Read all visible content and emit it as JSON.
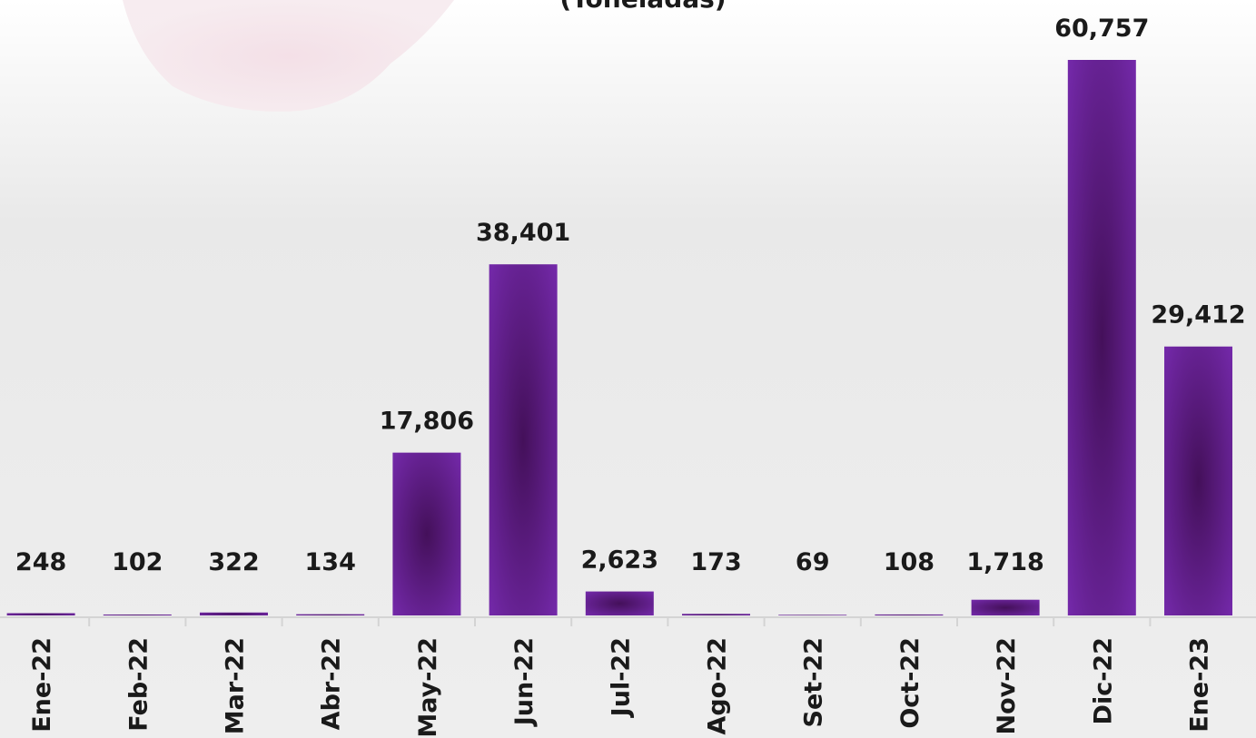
{
  "chart_data": {
    "type": "bar",
    "title": "(Toneladas)",
    "categories": [
      "Ene-22",
      "Feb-22",
      "Mar-22",
      "Abr-22",
      "May-22",
      "Jun-22",
      "Jul-22",
      "Ago-22",
      "Set-22",
      "Oct-22",
      "Nov-22",
      "Dic-22",
      "Ene-23"
    ],
    "values": [
      248,
      102,
      322,
      134,
      17806,
      38401,
      2623,
      173,
      69,
      108,
      1718,
      60757,
      29412
    ],
    "value_labels": [
      "248",
      "102",
      "322",
      "134",
      "17,806",
      "38,401",
      "2,623",
      "173",
      "69",
      "108",
      "1,718",
      "60,757",
      "29,412"
    ],
    "color": "#7030a0"
  }
}
